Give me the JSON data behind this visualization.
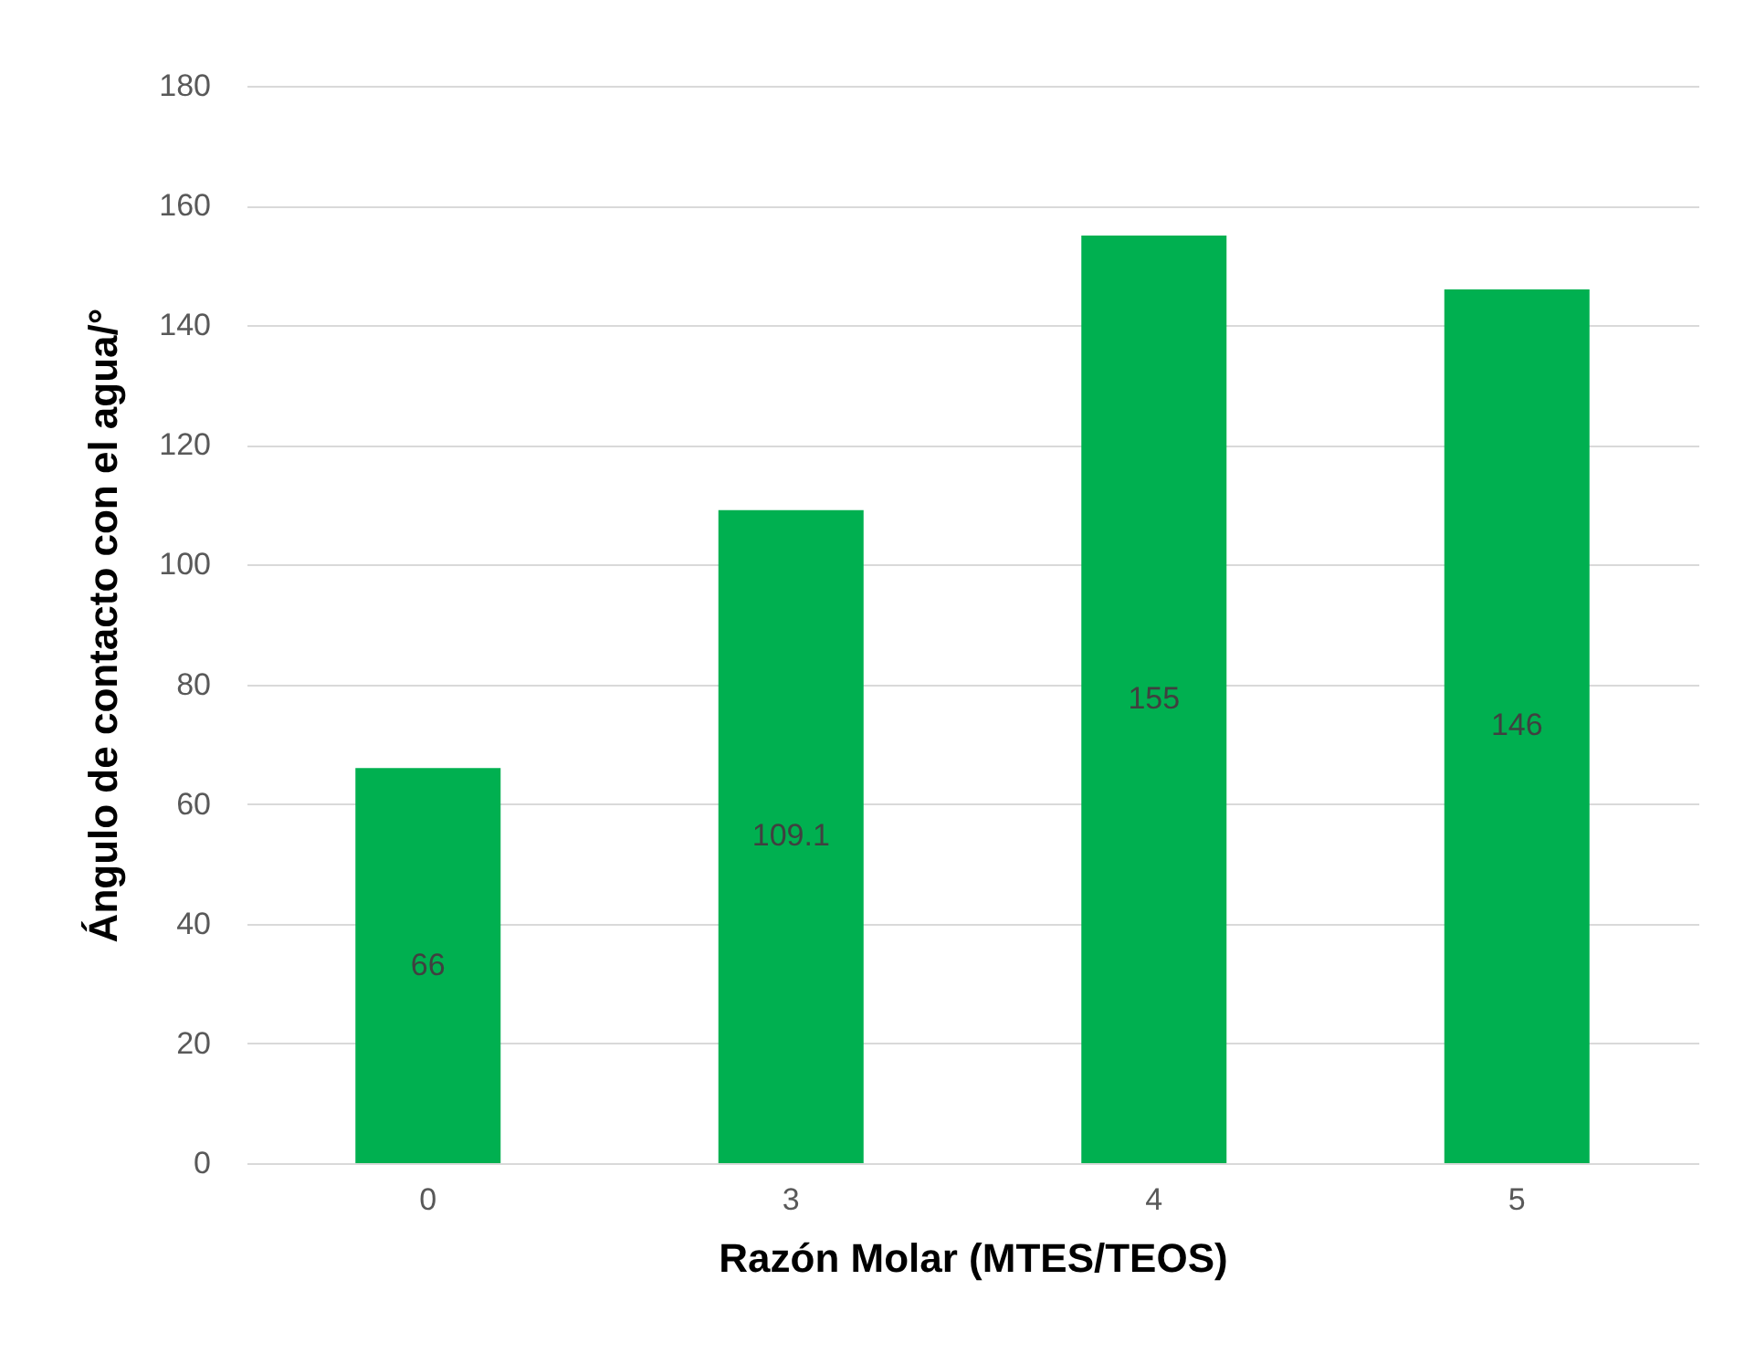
{
  "chart_data": {
    "type": "bar",
    "xlabel": "Razón Molar (MTES/TEOS)",
    "ylabel": "Ángulo de contacto con el agua/°",
    "categories": [
      "0",
      "3",
      "4",
      "5"
    ],
    "values": [
      66,
      109.1,
      155,
      146
    ],
    "color": "#00b050",
    "ylim": [
      0,
      180
    ],
    "yticks": [
      0,
      20,
      40,
      60,
      80,
      100,
      120,
      140,
      160,
      180
    ],
    "grid": "y",
    "data_labels": true
  }
}
